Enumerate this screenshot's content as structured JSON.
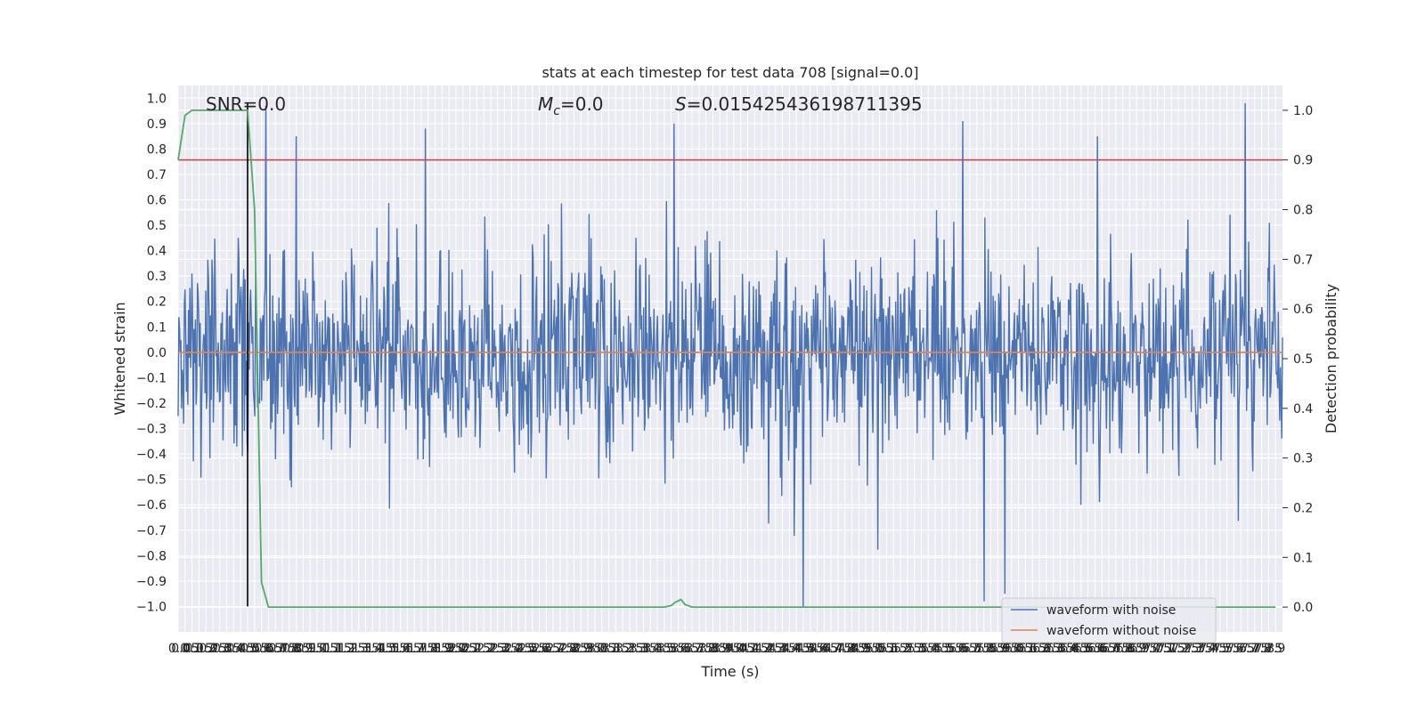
{
  "chart_data": {
    "type": "line",
    "title": "stats at each timestep for test data 708 [signal=0.0]",
    "xlabel": "Time (s)",
    "ylabel_left": "Whitened strain",
    "ylabel_right": "Detection probability",
    "xlim": [
      0.0,
      7.95
    ],
    "ylim_left": [
      -1.1,
      1.05
    ],
    "ylim_right": [
      -0.05,
      1.05
    ],
    "x_ticks": [
      "0.0",
      "0.05",
      "0.1",
      "0.15",
      "0.2",
      "0.25",
      "0.3",
      "0.35",
      "0.4",
      "0.45",
      "0.5",
      "0.55",
      "0.6",
      "0.65",
      "0.7",
      "0.75",
      "0.8",
      "0.85",
      "0.9",
      "0.95",
      "1.0",
      "1.05",
      "1.1",
      "1.15",
      "1.2",
      "1.25",
      "1.3",
      "1.35",
      "1.4",
      "1.45",
      "1.5",
      "1.55",
      "1.6",
      "1.65",
      "1.7",
      "1.75",
      "1.8",
      "1.85",
      "1.9",
      "1.95",
      "2.0",
      "2.05",
      "2.1",
      "2.15",
      "2.2",
      "2.25",
      "2.3",
      "2.35",
      "2.4",
      "2.45",
      "2.5",
      "2.55",
      "2.6",
      "2.65",
      "2.7",
      "2.75",
      "2.8",
      "2.85",
      "2.9",
      "2.95",
      "3.0",
      "3.05",
      "3.1",
      "3.15",
      "3.2",
      "3.25",
      "3.3",
      "3.35",
      "3.4",
      "3.45",
      "3.5",
      "3.55",
      "3.6",
      "3.65",
      "3.7",
      "3.75",
      "3.8",
      "3.85",
      "3.9",
      "3.95",
      "4.0",
      "4.05",
      "4.1",
      "4.15",
      "4.2",
      "4.25",
      "4.3",
      "4.35",
      "4.4",
      "4.45",
      "4.5",
      "4.55",
      "4.6",
      "4.65",
      "4.7",
      "4.75",
      "4.8",
      "4.85",
      "4.9",
      "4.95",
      "5.0",
      "5.05",
      "5.1",
      "5.15",
      "5.2",
      "5.25",
      "5.3",
      "5.35",
      "5.4",
      "5.45",
      "5.5",
      "5.55",
      "5.6",
      "5.65",
      "5.7",
      "5.75",
      "5.8",
      "5.85",
      "5.9",
      "5.95",
      "6.0",
      "6.05",
      "6.1",
      "6.15",
      "6.2",
      "6.25",
      "6.3",
      "6.35",
      "6.4",
      "6.45",
      "6.5",
      "6.55",
      "6.6",
      "6.65",
      "6.7",
      "6.75",
      "6.8",
      "6.85",
      "6.9",
      "6.95",
      "7.0",
      "7.05",
      "7.1",
      "7.15",
      "7.2",
      "7.25",
      "7.3",
      "7.35",
      "7.4",
      "7.45",
      "7.5",
      "7.55",
      "7.6",
      "7.65",
      "7.7",
      "7.75",
      "7.8",
      "7.85",
      "7.9"
    ],
    "y_ticks_left": [
      "1.0",
      "0.9",
      "0.8",
      "0.7",
      "0.6",
      "0.5",
      "0.4",
      "0.3",
      "0.2",
      "0.1",
      "0.0",
      "-0.1",
      "-0.2",
      "-0.3",
      "-0.4",
      "-0.5",
      "-0.6",
      "-0.7",
      "-0.8",
      "-0.9",
      "-1.0"
    ],
    "y_ticks_right": [
      "1.0",
      "0.9",
      "0.8",
      "0.7",
      "0.6",
      "0.5",
      "0.4",
      "0.3",
      "0.2",
      "0.1",
      "0.0"
    ],
    "annotations": {
      "snr": "SNR=0.0",
      "mc_main": "M",
      "mc_sub": "c",
      "mc_rest": "=0.0",
      "s_main": "S",
      "s_rest": "=0.015425436198711395"
    },
    "legend": {
      "placement": "lower-right",
      "entries": [
        "waveform with noise",
        "waveform without noise"
      ]
    },
    "colors": {
      "noise": "#4c72b0",
      "clean": "#dd8452",
      "probability": "#55a868",
      "threshold": "#c44e52",
      "marker": "#000000",
      "axes_bg": "#eaeaf2",
      "grid": "#ffffff"
    },
    "series": [
      {
        "name": "waveform with noise",
        "axis": "left",
        "noise_std": 0.2,
        "notable_peaks": [
          {
            "x": 0.63,
            "y": 0.97
          },
          {
            "x": 0.85,
            "y": 0.85
          },
          {
            "x": 1.78,
            "y": 0.88
          },
          {
            "x": 3.57,
            "y": 0.9
          },
          {
            "x": 5.65,
            "y": 0.91
          },
          {
            "x": 6.62,
            "y": 0.85
          },
          {
            "x": 7.68,
            "y": 0.98
          },
          {
            "x": 4.5,
            "y": -1.0
          },
          {
            "x": 5.8,
            "y": -0.98
          },
          {
            "x": 5.95,
            "y": -0.95
          }
        ]
      },
      {
        "name": "waveform without noise",
        "axis": "left",
        "x": [
          0.0,
          7.95
        ],
        "y": [
          0.0,
          0.0
        ]
      },
      {
        "axis": "right",
        "x": [
          0.0,
          0.05,
          0.1,
          0.15,
          0.2,
          0.25,
          0.3,
          0.35,
          0.4,
          0.45,
          0.5,
          0.55,
          0.6,
          0.65,
          1.0,
          2.0,
          3.0,
          3.5,
          3.55,
          3.58,
          3.62,
          3.65,
          3.7,
          4.0,
          5.0,
          6.0,
          7.0,
          7.9
        ],
        "y": [
          0.9,
          0.99,
          1.0,
          1.0,
          1.0,
          1.0,
          1.0,
          1.0,
          1.0,
          1.0,
          1.0,
          0.8,
          0.05,
          0.0,
          0.0,
          0.0,
          0.0,
          0.0,
          0.003,
          0.01,
          0.015,
          0.005,
          0.0,
          0.0,
          0.0,
          0.0,
          0.0,
          0.0
        ]
      },
      {
        "axis": "right",
        "x": [
          0.0,
          7.95
        ],
        "y": [
          0.9,
          0.9
        ]
      },
      {
        "axis": "left",
        "x": [
          0.5,
          0.5
        ],
        "y": [
          -1.0,
          0.98
        ]
      }
    ]
  }
}
